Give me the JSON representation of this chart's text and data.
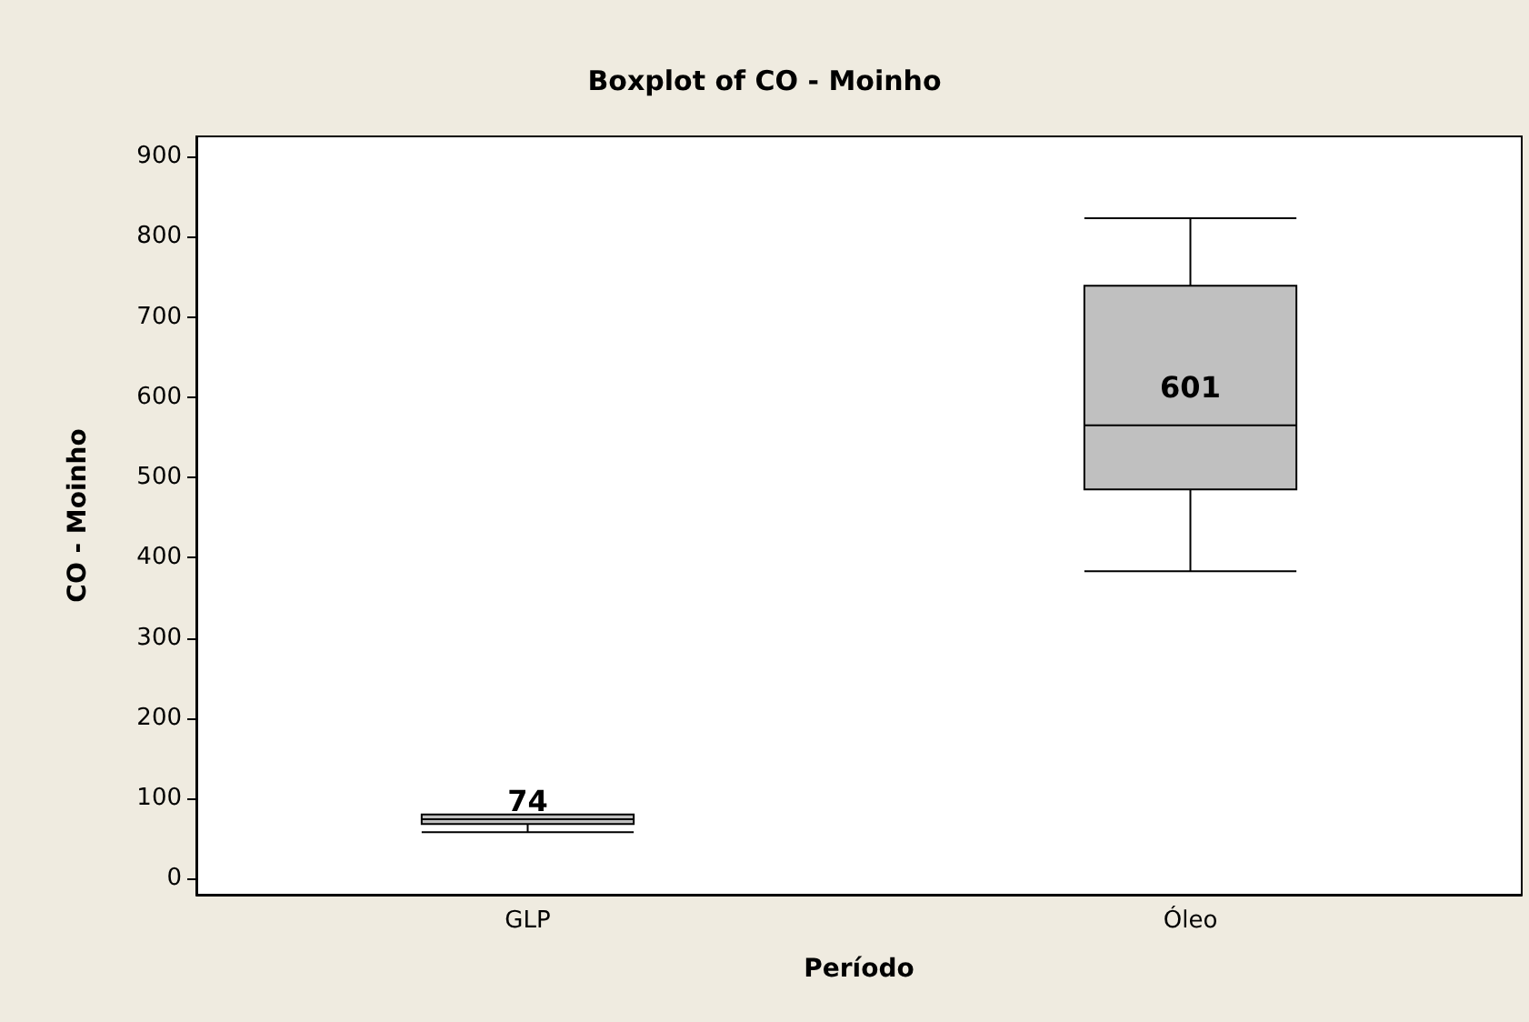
{
  "chart_data": {
    "type": "box",
    "title": "Boxplot of CO - Moinho",
    "xlabel": "Período",
    "ylabel": "CO - Moinho",
    "categories": [
      "GLP",
      "Óleo"
    ],
    "boxes": [
      {
        "low": 58,
        "q1": 68,
        "median": 74,
        "q3": 80,
        "high": 80
      },
      {
        "low": 383,
        "q1": 485,
        "median": 565,
        "q3": 739,
        "high": 823
      }
    ],
    "color": "#c0c0c0",
    "ylim": [
      -20,
      925
    ],
    "yticks": [
      0,
      100,
      200,
      300,
      400,
      500,
      600,
      700,
      800,
      900
    ],
    "value_labels": [
      "74",
      "601"
    ],
    "grid": false
  }
}
